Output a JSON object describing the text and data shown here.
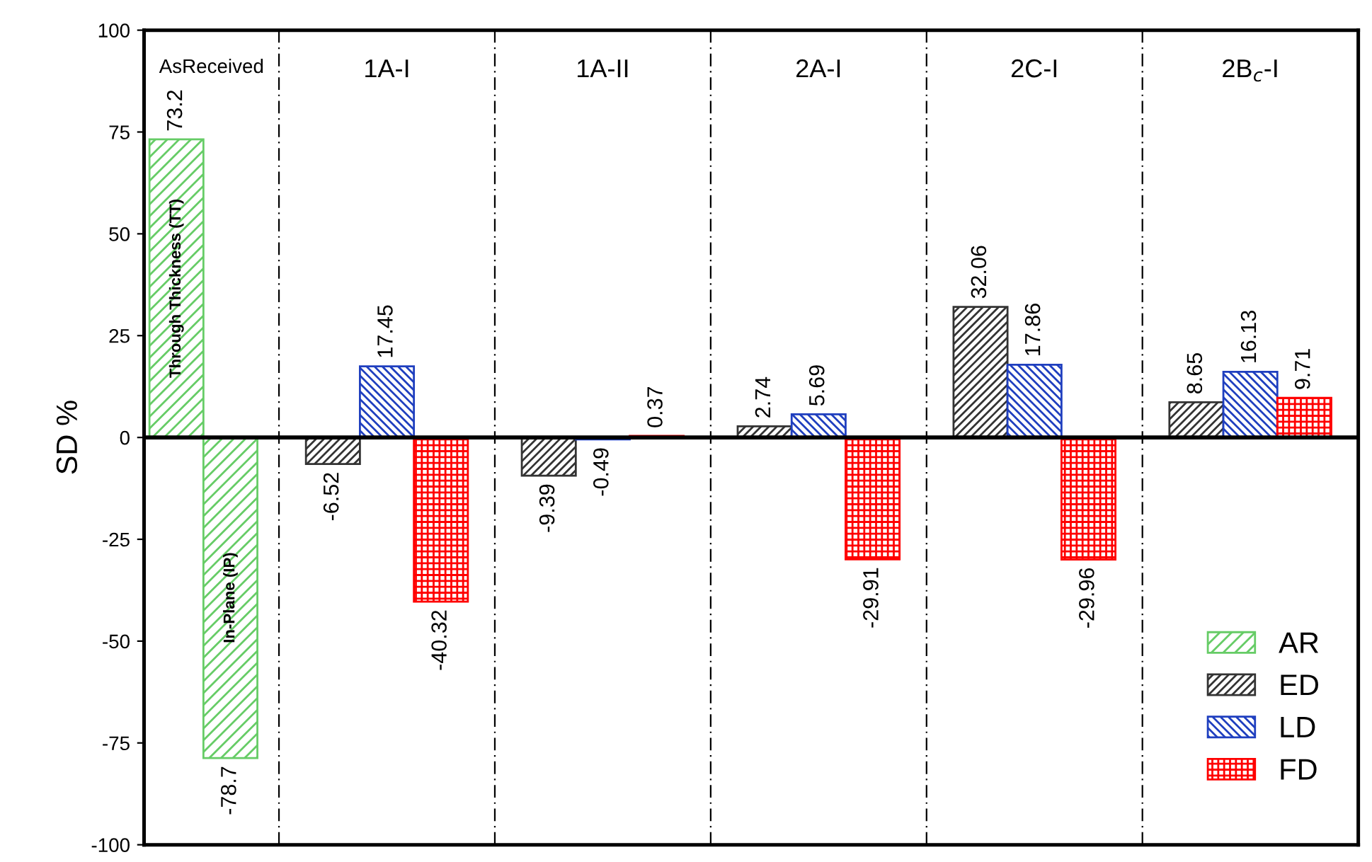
{
  "chart_data": {
    "type": "bar",
    "ylabel": "SD %",
    "categories": [
      "AsReceived",
      "1A-I",
      "1A-II",
      "2A-I",
      "2C-I",
      "2B$_{c}$-I"
    ],
    "series": [
      {
        "name": "AR",
        "color": "#66cc66",
        "values": [
          73.2,
          null,
          null,
          null,
          null,
          null
        ]
      },
      {
        "color": "#66cc66",
        "values": [
          -78.7,
          null,
          null,
          null,
          null,
          null
        ]
      },
      {
        "name": "ED",
        "color": "#333333",
        "values": [
          null,
          -6.52,
          -9.39,
          2.74,
          32.06,
          8.65
        ]
      },
      {
        "name": "LD",
        "color": "#1f3fbf",
        "values": [
          null,
          17.45,
          -0.49,
          5.69,
          17.86,
          16.13
        ]
      },
      {
        "name": "FD",
        "color": "#ff0000",
        "values": [
          null,
          -40.32,
          0.37,
          -29.91,
          -29.96,
          9.71
        ]
      }
    ],
    "annotations": [
      "Through Thickness (TT)",
      "In-Plane (IP)"
    ],
    "ylim": [
      -100,
      100
    ],
    "yticks": [
      -100,
      -75,
      -50,
      -25,
      0,
      25,
      50,
      75,
      100
    ],
    "data_labels": true,
    "legend": "bottom right",
    "grid": false
  }
}
